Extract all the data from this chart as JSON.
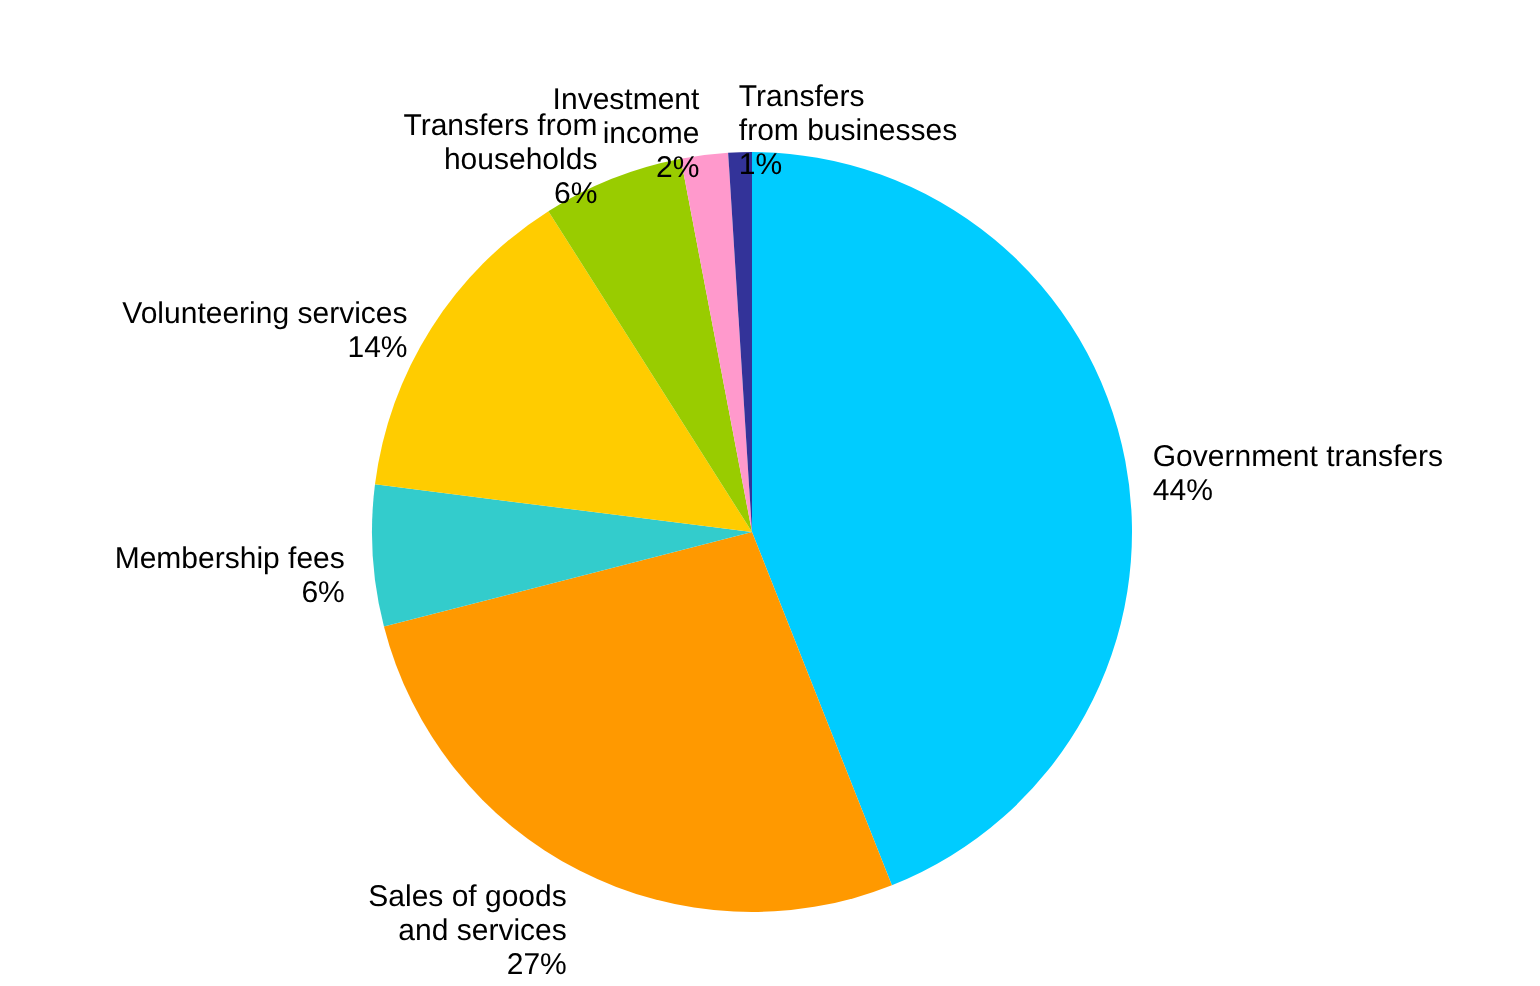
{
  "chart_data": {
    "type": "pie",
    "categories": [
      "Government transfers",
      "Sales of goods\nand services",
      "Membership fees",
      "Volunteering services",
      "Transfers from\nhouseholds",
      "Investment\nincome",
      "Transfers\nfrom businesses"
    ],
    "values": [
      44,
      27,
      6,
      14,
      6,
      2,
      1
    ],
    "value_labels": [
      "44%",
      "27%",
      "6%",
      "14%",
      "6%",
      "2%",
      "1%"
    ],
    "colors": [
      "#00ccff",
      "#ff9900",
      "#33cccc",
      "#ffcc00",
      "#99cc00",
      "#ff99cc",
      "#333399"
    ]
  }
}
